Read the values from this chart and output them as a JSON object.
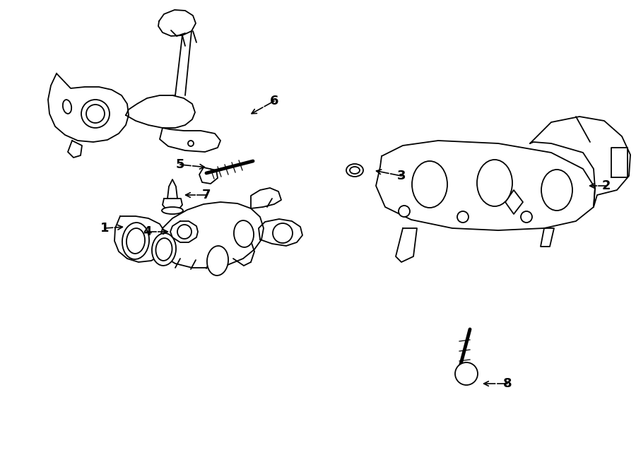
{
  "bg": "#ffffff",
  "lw": 1.3,
  "fig_w": 9.0,
  "fig_h": 6.61,
  "dpi": 100
}
